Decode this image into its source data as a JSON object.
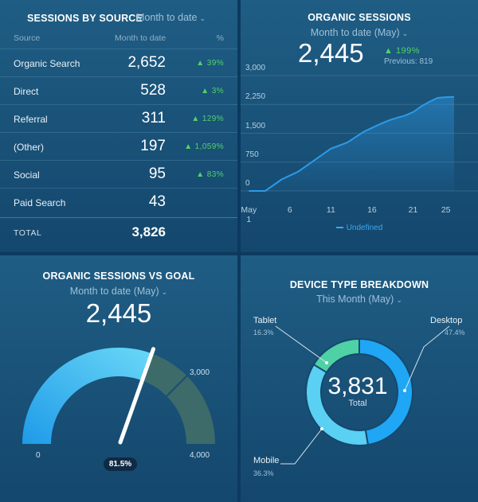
{
  "sessions_by_source": {
    "title": "SESSIONS BY SOURCE",
    "period": "Month to date",
    "col_source": "Source",
    "col_month": "Month to date",
    "col_pct": "%",
    "rows": [
      {
        "source": "Organic Search",
        "value": "2,652",
        "change": "▲ 39%"
      },
      {
        "source": "Direct",
        "value": "528",
        "change": "▲ 3%"
      },
      {
        "source": "Referral",
        "value": "311",
        "change": "▲ 129%"
      },
      {
        "source": "(Other)",
        "value": "197",
        "change": "▲ 1,059%"
      },
      {
        "source": "Social",
        "value": "95",
        "change": "▲ 83%"
      },
      {
        "source": "Paid Search",
        "value": "43",
        "change": ""
      }
    ],
    "total_label": "TOTAL",
    "total_value": "3,826"
  },
  "organic_sessions": {
    "title": "ORGANIC SESSIONS",
    "period": "Month to date (May)",
    "value": "2,445",
    "change": "▲ 199%",
    "previous": "Previous: 819",
    "chart_data": {
      "type": "area",
      "x": [
        1,
        2,
        3,
        4,
        5,
        6,
        7,
        8,
        9,
        10,
        11,
        12,
        13,
        14,
        15,
        16,
        17,
        18,
        19,
        20,
        21,
        22,
        23,
        24,
        25,
        26
      ],
      "series": [
        {
          "name": "Undefined",
          "values": [
            0,
            0,
            0,
            150,
            300,
            400,
            500,
            650,
            800,
            950,
            1100,
            1180,
            1260,
            1400,
            1540,
            1640,
            1740,
            1830,
            1900,
            1960,
            2050,
            2200,
            2320,
            2420,
            2440,
            2445
          ]
        }
      ],
      "x_tick_labels": [
        "May 1",
        "6",
        "11",
        "16",
        "21",
        "25"
      ],
      "x_tick_positions": [
        1,
        6,
        11,
        16,
        21,
        25
      ],
      "y_ticks": [
        0,
        750,
        1500,
        2250,
        3000
      ],
      "y_tick_labels": [
        "0",
        "750",
        "1,500",
        "2,250",
        "3,000"
      ],
      "ylim": [
        0,
        3000
      ],
      "xlim": [
        0,
        26
      ],
      "color": "#2d9ae8"
    }
  },
  "organic_vs_goal": {
    "title": "ORGANIC SESSIONS VS GOAL",
    "period": "Month to date (May)",
    "value": "2,445",
    "gauge": {
      "value": 2445,
      "min": 0,
      "max": 4000,
      "goal": 3000,
      "percent_label": "81.5%"
    },
    "label_min": "0",
    "label_goal": "3,000",
    "label_max": "4,000",
    "color_fill": "#34b6f2",
    "color_rest": "#3d6b6a"
  },
  "device_type": {
    "title": "DEVICE TYPE BREAKDOWN",
    "period": "This Month (May)",
    "total": "3,831",
    "total_label": "Total",
    "chart_data": {
      "type": "pie",
      "slices": [
        {
          "name": "Desktop",
          "percent": 47.4,
          "color": "#1fa6f5"
        },
        {
          "name": "Mobile",
          "percent": 36.3,
          "color": "#5ad0f3"
        },
        {
          "name": "Tablet",
          "percent": 16.3,
          "color": "#4fd1a6"
        }
      ]
    },
    "desktop_label": "Desktop",
    "desktop_pct": "47.4%",
    "mobile_label": "Mobile",
    "mobile_pct": "36.3%",
    "tablet_label": "Tablet",
    "tablet_pct": "16.3%"
  }
}
